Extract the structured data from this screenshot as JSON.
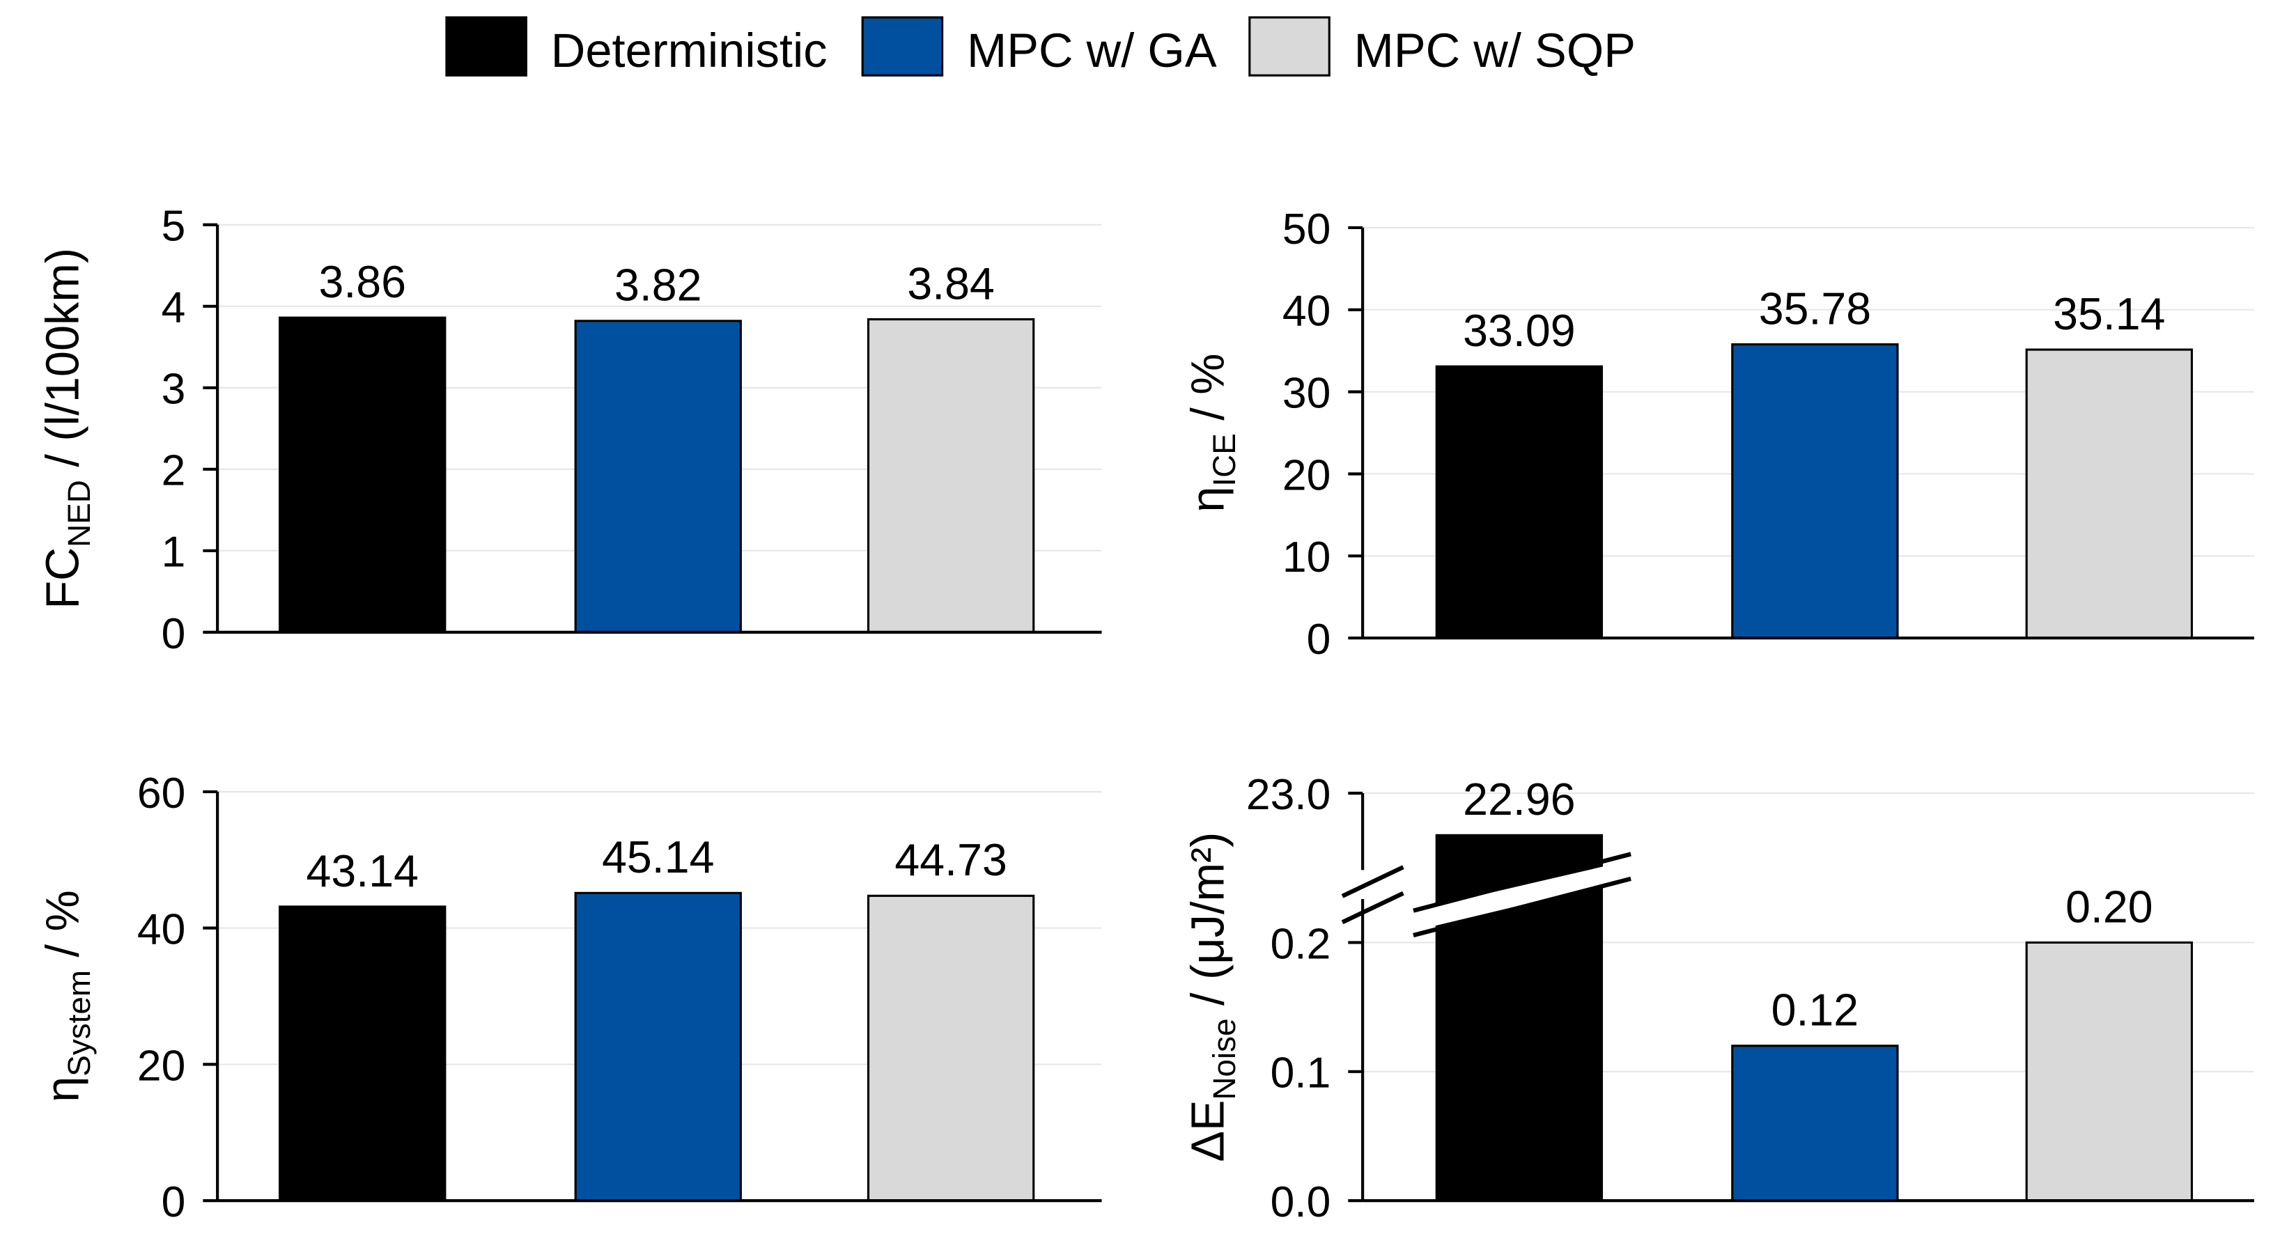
{
  "legend": [
    {
      "label": "Deterministic",
      "color": "#000000"
    },
    {
      "label": "MPC w/ GA",
      "color": "#0050A0"
    },
    {
      "label": "MPC w/ SQP",
      "color": "#D9D9D9"
    }
  ],
  "chart_data": [
    {
      "type": "bar",
      "ylabel": {
        "main": "FC",
        "sub": "NED",
        "rest": " / (l/100km)"
      },
      "categories": [
        "Deterministic",
        "MPC w/ GA",
        "MPC w/ SQP"
      ],
      "values": [
        3.86,
        3.82,
        3.84
      ],
      "value_labels": [
        "3.86",
        "3.82",
        "3.84"
      ],
      "ylim": [
        0,
        5
      ],
      "yticks": [
        0,
        1,
        2,
        3,
        4,
        5
      ],
      "ytick_labels": [
        "0",
        "1",
        "2",
        "3",
        "4",
        "5"
      ]
    },
    {
      "type": "bar",
      "ylabel": {
        "main": "η",
        "sub": "ICE",
        "rest": " / %"
      },
      "categories": [
        "Deterministic",
        "MPC w/ GA",
        "MPC w/ SQP"
      ],
      "values": [
        33.09,
        35.78,
        35.14
      ],
      "value_labels": [
        "33.09",
        "35.78",
        "35.14"
      ],
      "ylim": [
        0,
        50
      ],
      "yticks": [
        0,
        10,
        20,
        30,
        40,
        50
      ],
      "ytick_labels": [
        "0",
        "10",
        "20",
        "30",
        "40",
        "50"
      ]
    },
    {
      "type": "bar",
      "ylabel": {
        "main": "η",
        "sub": "System",
        "rest": " / %"
      },
      "categories": [
        "Deterministic",
        "MPC w/ GA",
        "MPC w/ SQP"
      ],
      "values": [
        43.14,
        45.14,
        44.73
      ],
      "value_labels": [
        "43.14",
        "45.14",
        "44.73"
      ],
      "ylim": [
        0,
        60
      ],
      "yticks": [
        0,
        20,
        40,
        60
      ],
      "ytick_labels": [
        "0",
        "20",
        "40",
        "60"
      ]
    },
    {
      "type": "bar",
      "broken_axis": true,
      "ylabel": {
        "main": "ΔE",
        "sub": "Noise",
        "rest": " / (μJ/m²)"
      },
      "categories": [
        "Deterministic",
        "MPC w/ GA",
        "MPC w/ SQP"
      ],
      "values": [
        22.96,
        0.12,
        0.2
      ],
      "value_labels": [
        "22.96",
        "0.12",
        "0.20"
      ],
      "ylim": [
        0,
        23.0
      ],
      "yticks": [
        0,
        0.1,
        0.2,
        23.0
      ],
      "ytick_labels": [
        "0.0",
        "0.1",
        "0.2",
        "23.0"
      ]
    }
  ]
}
